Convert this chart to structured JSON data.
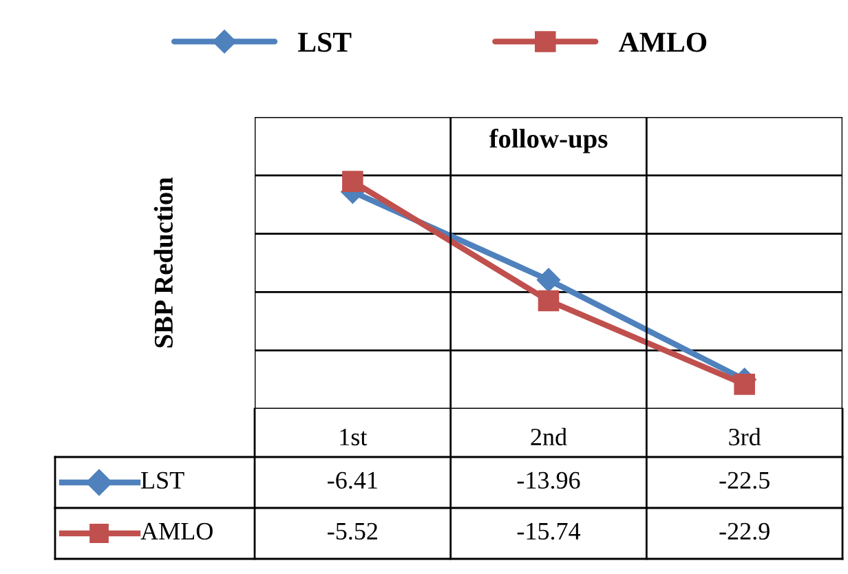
{
  "chart_data": {
    "type": "line",
    "xlabel": "follow-ups",
    "ylabel": "SBP Reduction",
    "categories": [
      "1st",
      "2nd",
      "3rd"
    ],
    "series": [
      {
        "name": "LST",
        "color": "#4f81bd",
        "values": [
          -6.41,
          -13.96,
          -22.5
        ],
        "marker": "diamond"
      },
      {
        "name": "AMLO",
        "color": "#c0504d",
        "values": [
          -5.52,
          -15.74,
          -22.9
        ],
        "marker": "square"
      }
    ],
    "ylim": [
      -25,
      0
    ],
    "yticks": [
      {
        "value": -25,
        "label": null
      },
      {
        "value": -20,
        "label": null
      },
      {
        "value": -15,
        "label": null
      },
      {
        "value": -10,
        "label": null
      },
      {
        "value": -5,
        "label": null
      },
      {
        "value": 0,
        "label": null
      }
    ],
    "tick_labels": "x",
    "grid": "y",
    "legend": "top",
    "data_labels": true,
    "line_style": "solid"
  }
}
